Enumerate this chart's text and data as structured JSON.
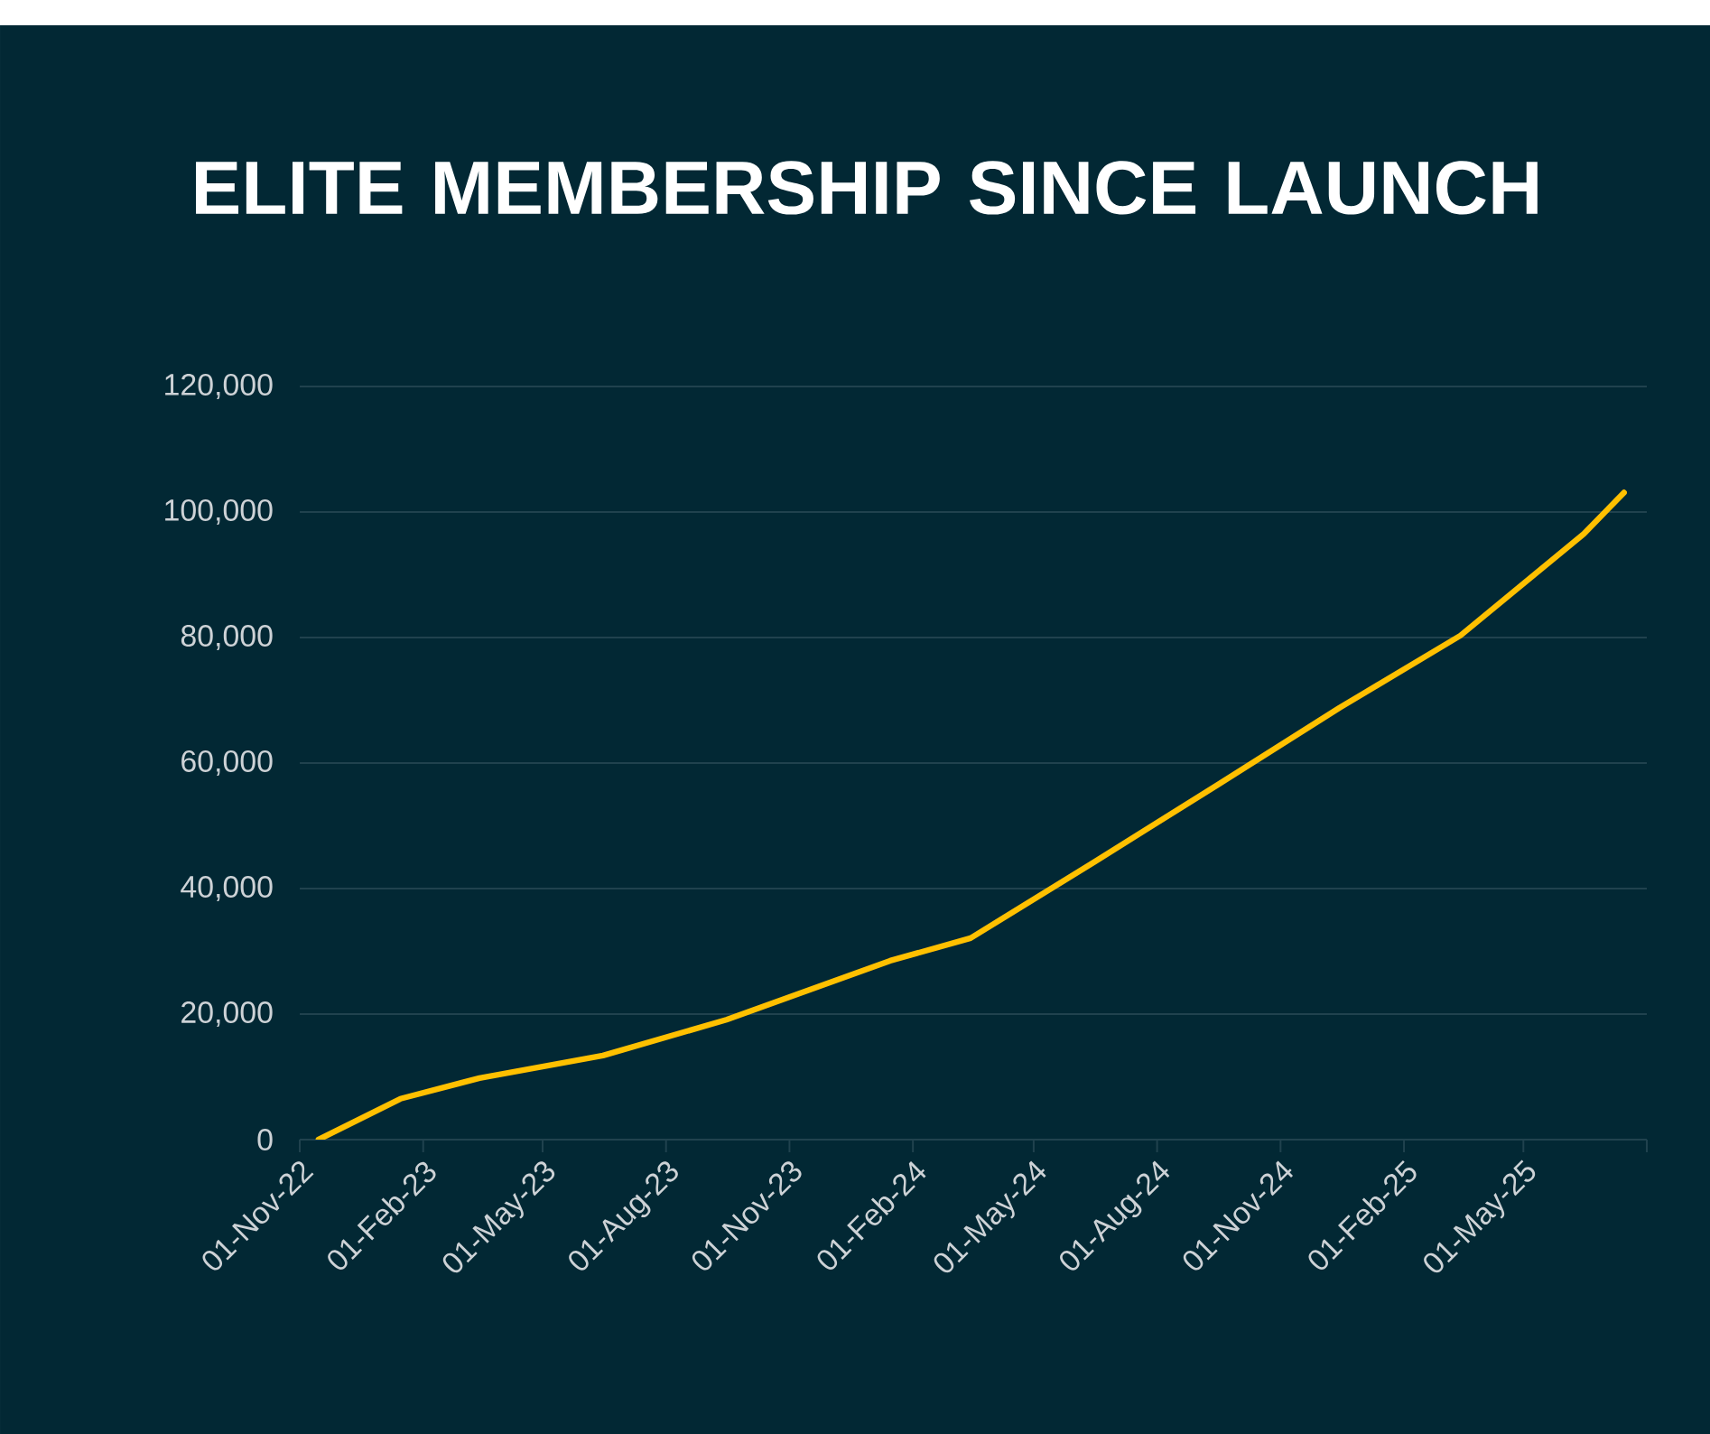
{
  "chart_data": {
    "type": "line",
    "title": "ELITE MEMBERSHIP SINCE LAUNCH",
    "x": [
      "2022-11-15",
      "2023-01-15",
      "2023-03-15",
      "2023-06-15",
      "2023-09-15",
      "2024-01-15",
      "2024-03-15",
      "2024-06-15",
      "2024-09-15",
      "2024-12-15",
      "2025-03-15",
      "2025-06-15",
      "2025-07-15"
    ],
    "series": [
      {
        "color": "#ffc000",
        "values": [
          0,
          6500,
          9800,
          13400,
          19100,
          28500,
          32100,
          44200,
          56500,
          68800,
          80300,
          96500,
          103100
        ]
      }
    ],
    "xlim": [
      "2022-11-01",
      "2025-08-01"
    ],
    "xticks": [
      {
        "value": "2022-11-01",
        "label": "01-Nov-22"
      },
      {
        "value": "2023-02-01",
        "label": "01-Feb-23"
      },
      {
        "value": "2023-05-01",
        "label": "01-May-23"
      },
      {
        "value": "2023-08-01",
        "label": "01-Aug-23"
      },
      {
        "value": "2023-11-01",
        "label": "01-Nov-23"
      },
      {
        "value": "2024-02-01",
        "label": "01-Feb-24"
      },
      {
        "value": "2024-05-01",
        "label": "01-May-24"
      },
      {
        "value": "2024-08-01",
        "label": "01-Aug-24"
      },
      {
        "value": "2024-11-01",
        "label": "01-Nov-24"
      },
      {
        "value": "2025-02-01",
        "label": "01-Feb-25"
      },
      {
        "value": "2025-05-01",
        "label": "01-May-25"
      },
      {
        "value": "2025-08-01",
        "label": null
      }
    ],
    "ylim": [
      0,
      120000
    ],
    "yticks": [
      0,
      {
        "value": 20000,
        "label": "20,000"
      },
      {
        "value": 40000,
        "label": "40,000"
      },
      {
        "value": 60000,
        "label": "60,000"
      },
      {
        "value": 80000,
        "label": "80,000"
      },
      {
        "value": 100000,
        "label": "100,000"
      },
      {
        "value": 120000,
        "label": "120,000"
      }
    ],
    "grid": "y",
    "legend": false,
    "marker": "none",
    "line_style": "solid"
  }
}
